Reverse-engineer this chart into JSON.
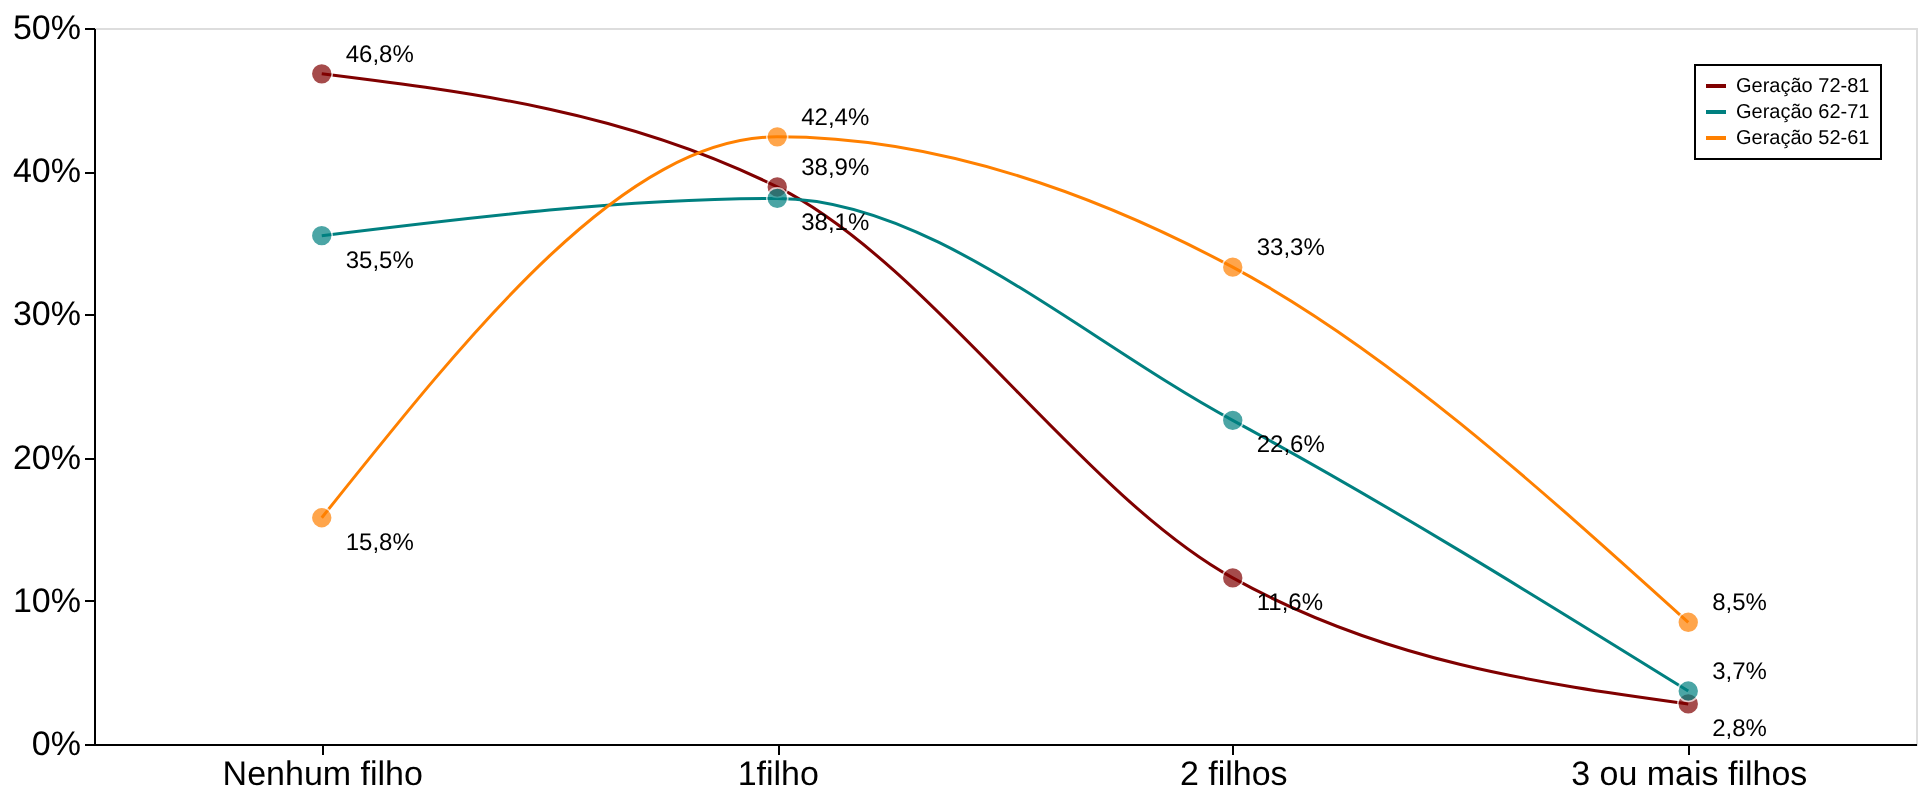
{
  "chart_data": {
    "type": "line",
    "categories": [
      "Nenhum filho",
      "1filho",
      "2 filhos",
      "3 ou mais filhos"
    ],
    "series": [
      {
        "name": "Geração 72-81",
        "color": "#800000",
        "values": [
          46.8,
          38.9,
          11.6,
          2.8
        ],
        "value_labels": [
          "46,8%",
          "38,9%",
          "11,6%",
          "2,8%"
        ]
      },
      {
        "name": "Geração 62-71",
        "color": "#008080",
        "values": [
          35.5,
          38.1,
          22.6,
          3.7
        ],
        "value_labels": [
          "35,5%",
          "38,1%",
          "22,6%",
          "3,7%"
        ]
      },
      {
        "name": "Geração 52-61",
        "color": "#ff8000",
        "values": [
          15.8,
          42.4,
          33.3,
          8.5
        ],
        "value_labels": [
          "15,8%",
          "42,4%",
          "33,3%",
          "8,5%"
        ]
      }
    ],
    "ylim": [
      0,
      50
    ],
    "yticks": [
      {
        "value": 0,
        "label": "0%"
      },
      {
        "value": 10,
        "label": "10%"
      },
      {
        "value": 20,
        "label": "20%"
      },
      {
        "value": 30,
        "label": "30%"
      },
      {
        "value": 40,
        "label": "40%"
      },
      {
        "value": 50,
        "label": "50%"
      }
    ],
    "grid": false,
    "legend": "top right",
    "marker": "circle",
    "line_style": "solid"
  }
}
